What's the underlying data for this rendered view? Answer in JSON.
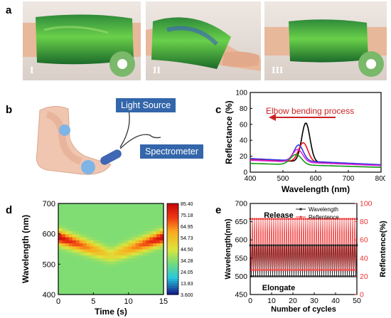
{
  "panels": {
    "a": {
      "label": "a",
      "photos": [
        "I",
        "II",
        "III"
      ]
    },
    "b": {
      "label": "b",
      "light_source": "Light Source",
      "spectrometer": "Spectrometer"
    },
    "c": {
      "label": "c",
      "annotation": "Elbow bending process",
      "accent_color": "#cc2222"
    },
    "d": {
      "label": "d"
    },
    "e": {
      "label": "e",
      "top_note": "Release",
      "bottom_note": "Elongate"
    }
  },
  "chart_data": [
    {
      "id": "c",
      "type": "line",
      "xlabel": "Wavelength (nm)",
      "ylabel": "Reflectance (%)",
      "xlim": [
        400,
        800
      ],
      "ylim": [
        0,
        100
      ],
      "xticks": [
        400,
        500,
        600,
        700,
        800
      ],
      "yticks": [
        0,
        20,
        40,
        60,
        80,
        100
      ],
      "series": [
        {
          "color": "#000000",
          "baseline": 16,
          "peak_x": 570,
          "peak_y": 65,
          "width": 18
        },
        {
          "color": "#ee1111",
          "baseline": 16,
          "peak_x": 562,
          "peak_y": 40,
          "width": 20
        },
        {
          "color": "#3333dd",
          "baseline": 17,
          "peak_x": 548,
          "peak_y": 37,
          "width": 20
        },
        {
          "color": "#dd22dd",
          "baseline": 15,
          "peak_x": 545,
          "peak_y": 31,
          "width": 22
        },
        {
          "color": "#119911",
          "baseline": 11,
          "peak_x": 540,
          "peak_y": 24,
          "width": 24
        }
      ]
    },
    {
      "id": "d",
      "type": "heatmap",
      "xlabel": "Time (s)",
      "ylabel": "Wavelength (nm)",
      "xlim": [
        0,
        15
      ],
      "ylim": [
        400,
        700
      ],
      "xticks": [
        0,
        5,
        10,
        15
      ],
      "yticks": [
        400,
        500,
        600,
        700
      ],
      "colorbar_ticks": [
        "85.40",
        "75.18",
        "64.95",
        "54.73",
        "44.50",
        "34.28",
        "24.05",
        "13.83",
        "3.600"
      ],
      "colorbar_range": [
        3.6,
        85.4
      ],
      "ridge": [
        [
          0,
          590
        ],
        [
          7.5,
          530
        ],
        [
          15,
          590
        ]
      ]
    },
    {
      "id": "e",
      "type": "line",
      "xlabel": "Number of cycles",
      "ylabel": "Wavelength(nm)",
      "ylabel2": "Reflentence(%)",
      "xlim": [
        0,
        50
      ],
      "ylim": [
        450,
        700
      ],
      "ylim2": [
        0,
        100
      ],
      "xticks": [
        0,
        10,
        20,
        30,
        40,
        50
      ],
      "yticks": [
        450,
        500,
        550,
        600,
        650,
        700
      ],
      "yticks2": [
        0,
        20,
        40,
        60,
        80,
        100
      ],
      "series": [
        {
          "name": "Wavelength",
          "color": "#222222",
          "high": 585,
          "low": 500,
          "axis": "left"
        },
        {
          "name": "Reflentence",
          "color": "#ee3333",
          "high": 83,
          "low": 27,
          "axis": "right"
        }
      ]
    }
  ]
}
